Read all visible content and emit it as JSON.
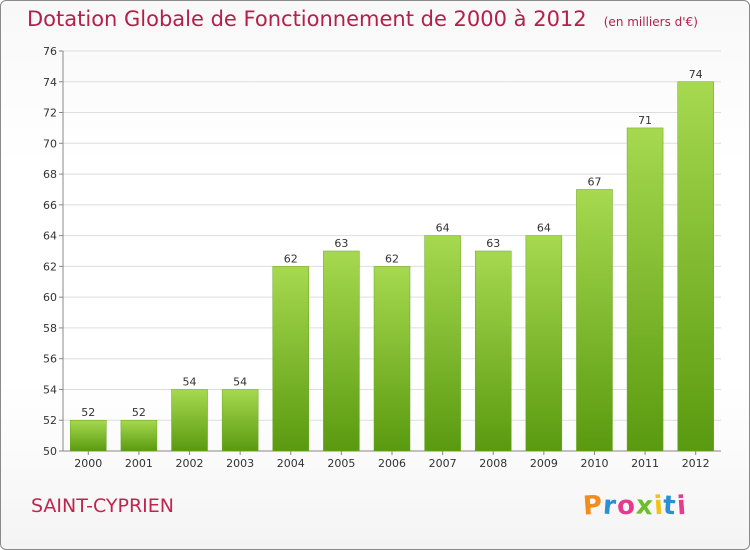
{
  "title": "Dotation Globale de Fonctionnement de 2000 à 2012",
  "unit": "(en milliers d'€)",
  "commune": "SAINT-CYPRIEN",
  "logo": "Proxiti",
  "colors": {
    "title": "#b5204a",
    "bar_top": "#a6d94f",
    "bar_bottom": "#5a9a10",
    "grid": "#dddddd"
  },
  "chart_data": {
    "type": "bar",
    "title": "Dotation Globale de Fonctionnement de 2000 à 2012",
    "subtitle": "(en milliers d'€)",
    "xlabel": "",
    "ylabel": "",
    "categories": [
      "2000",
      "2001",
      "2002",
      "2003",
      "2004",
      "2005",
      "2006",
      "2007",
      "2008",
      "2009",
      "2010",
      "2011",
      "2012"
    ],
    "values": [
      52,
      52,
      54,
      54,
      62,
      63,
      62,
      64,
      63,
      64,
      67,
      71,
      74
    ],
    "ylim": [
      50,
      76
    ],
    "yticks": [
      50,
      52,
      54,
      56,
      58,
      60,
      62,
      64,
      66,
      68,
      70,
      72,
      74,
      76
    ],
    "grid": true,
    "legend": "none"
  }
}
